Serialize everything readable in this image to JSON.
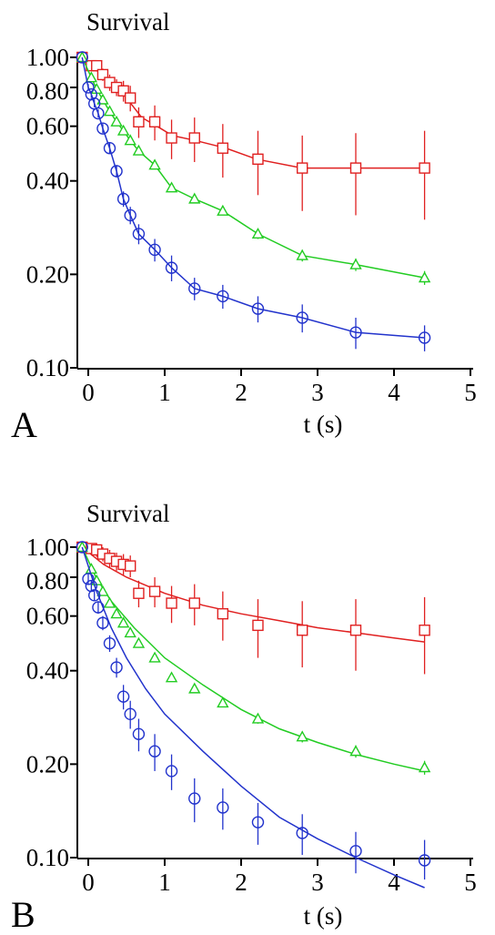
{
  "chart_data": [
    {
      "panel_label": "A",
      "type": "scatter",
      "ylabel": "Survival",
      "xlabel": "t (s)",
      "y_scale": "log",
      "xlim": [
        -0.1,
        5
      ],
      "ylim": [
        0.1,
        1.0
      ],
      "x_ticks": [
        "0",
        "1",
        "2",
        "3",
        "4",
        "5"
      ],
      "y_ticks": [
        "1.00",
        "0.80",
        "0.60",
        "0.40",
        "0.20",
        "0.10"
      ],
      "x_tick_values": [
        0,
        1,
        2,
        3,
        4,
        5
      ],
      "y_tick_values": [
        1.0,
        0.8,
        0.6,
        0.4,
        0.2,
        0.1
      ],
      "series": [
        {
          "marker": "square",
          "color": "#e02020",
          "x": [
            -0.08,
            0.04,
            0.11,
            0.19,
            0.28,
            0.37,
            0.46,
            0.55,
            0.66,
            0.87,
            1.09,
            1.39,
            1.76,
            2.22,
            2.8,
            3.5,
            4.4
          ],
          "y": [
            1.0,
            0.94,
            0.94,
            0.88,
            0.83,
            0.8,
            0.78,
            0.74,
            0.62,
            0.62,
            0.55,
            0.55,
            0.51,
            0.47,
            0.44,
            0.44,
            0.44
          ],
          "err": [
            0,
            0.03,
            0.04,
            0.04,
            0.05,
            0.05,
            0.06,
            0.07,
            0.07,
            0.08,
            0.08,
            0.09,
            0.1,
            0.11,
            0.12,
            0.13,
            0.14
          ],
          "fit_x": [
            -0.08,
            0.05,
            0.15,
            0.3,
            0.5,
            0.7,
            0.9,
            1.1,
            1.4,
            1.8,
            2.2,
            2.8,
            3.5,
            4.4
          ],
          "fit_y": [
            1.0,
            0.95,
            0.9,
            0.83,
            0.74,
            0.64,
            0.6,
            0.56,
            0.54,
            0.51,
            0.47,
            0.44,
            0.44,
            0.44
          ]
        },
        {
          "marker": "triangle",
          "color": "#22cc22",
          "x": [
            -0.08,
            0.04,
            0.11,
            0.19,
            0.28,
            0.37,
            0.46,
            0.55,
            0.66,
            0.87,
            1.09,
            1.39,
            1.76,
            2.22,
            2.8,
            3.5,
            4.4
          ],
          "y": [
            1.0,
            0.86,
            0.79,
            0.73,
            0.67,
            0.62,
            0.58,
            0.54,
            0.5,
            0.45,
            0.38,
            0.35,
            0.32,
            0.27,
            0.23,
            0.215,
            0.195
          ],
          "err": [
            0,
            0.01,
            0.01,
            0.01,
            0.01,
            0.01,
            0.01,
            0.01,
            0.01,
            0.01,
            0.01,
            0.01,
            0.01,
            0.01,
            0.01,
            0.01,
            0.01
          ],
          "fit_x": [
            -0.08,
            0.04,
            0.11,
            0.19,
            0.28,
            0.37,
            0.46,
            0.55,
            0.66,
            0.87,
            1.09,
            1.39,
            1.76,
            2.22,
            2.8,
            3.5,
            4.4
          ],
          "fit_y": [
            1.0,
            0.86,
            0.79,
            0.73,
            0.67,
            0.62,
            0.58,
            0.54,
            0.5,
            0.45,
            0.38,
            0.35,
            0.32,
            0.27,
            0.23,
            0.215,
            0.195
          ]
        },
        {
          "marker": "circle",
          "color": "#2233cc",
          "x": [
            -0.08,
            0.0,
            0.04,
            0.08,
            0.13,
            0.19,
            0.28,
            0.37,
            0.46,
            0.55,
            0.66,
            0.87,
            1.09,
            1.39,
            1.76,
            2.22,
            2.8,
            3.5,
            4.4
          ],
          "y": [
            1.0,
            0.8,
            0.76,
            0.71,
            0.66,
            0.59,
            0.51,
            0.43,
            0.35,
            0.31,
            0.27,
            0.24,
            0.21,
            0.18,
            0.17,
            0.155,
            0.145,
            0.13,
            0.125
          ],
          "err": [
            0,
            0.02,
            0.02,
            0.02,
            0.02,
            0.02,
            0.02,
            0.02,
            0.02,
            0.02,
            0.02,
            0.02,
            0.02,
            0.015,
            0.015,
            0.015,
            0.015,
            0.015,
            0.012
          ],
          "fit_x": [
            -0.08,
            0.0,
            0.04,
            0.08,
            0.13,
            0.19,
            0.28,
            0.37,
            0.46,
            0.55,
            0.66,
            0.87,
            1.09,
            1.39,
            1.76,
            2.22,
            2.8,
            3.5,
            4.4
          ],
          "fit_y": [
            1.0,
            0.8,
            0.76,
            0.71,
            0.66,
            0.59,
            0.51,
            0.43,
            0.35,
            0.31,
            0.27,
            0.24,
            0.21,
            0.18,
            0.17,
            0.155,
            0.145,
            0.13,
            0.125
          ]
        }
      ]
    },
    {
      "panel_label": "B",
      "type": "scatter",
      "ylabel": "Survival",
      "xlabel": "t (s)",
      "y_scale": "log",
      "xlim": [
        -0.1,
        5
      ],
      "ylim": [
        0.1,
        1.0
      ],
      "x_ticks": [
        "0",
        "1",
        "2",
        "3",
        "4",
        "5"
      ],
      "y_ticks": [
        "1.00",
        "0.80",
        "0.60",
        "0.40",
        "0.20",
        "0.10"
      ],
      "x_tick_values": [
        0,
        1,
        2,
        3,
        4,
        5
      ],
      "y_tick_values": [
        1.0,
        0.8,
        0.6,
        0.4,
        0.2,
        0.1
      ],
      "series": [
        {
          "marker": "square",
          "color": "#e02020",
          "x": [
            -0.08,
            0.04,
            0.11,
            0.19,
            0.28,
            0.37,
            0.46,
            0.55,
            0.66,
            0.87,
            1.09,
            1.39,
            1.76,
            2.22,
            2.8,
            3.5,
            4.4
          ],
          "y": [
            1.0,
            0.99,
            0.98,
            0.95,
            0.92,
            0.9,
            0.88,
            0.87,
            0.71,
            0.72,
            0.66,
            0.66,
            0.61,
            0.56,
            0.54,
            0.54,
            0.54
          ],
          "err": [
            0,
            0.04,
            0.05,
            0.05,
            0.06,
            0.06,
            0.07,
            0.07,
            0.07,
            0.08,
            0.09,
            0.1,
            0.11,
            0.12,
            0.13,
            0.14,
            0.15
          ],
          "fit_x": [
            -0.08,
            0.2,
            0.5,
            1.0,
            1.5,
            2.0,
            2.5,
            3.0,
            3.5,
            4.0,
            4.4
          ],
          "fit_y": [
            1.0,
            0.88,
            0.8,
            0.71,
            0.65,
            0.61,
            0.58,
            0.55,
            0.53,
            0.51,
            0.495
          ]
        },
        {
          "marker": "triangle",
          "color": "#22cc22",
          "x": [
            -0.08,
            0.04,
            0.11,
            0.19,
            0.28,
            0.37,
            0.46,
            0.55,
            0.66,
            0.87,
            1.09,
            1.39,
            1.76,
            2.22,
            2.8,
            3.5,
            4.4
          ],
          "y": [
            1.0,
            0.85,
            0.78,
            0.72,
            0.66,
            0.61,
            0.57,
            0.53,
            0.49,
            0.44,
            0.38,
            0.35,
            0.315,
            0.28,
            0.245,
            0.22,
            0.195
          ],
          "err": [
            0,
            0.01,
            0.01,
            0.01,
            0.01,
            0.01,
            0.01,
            0.01,
            0.01,
            0.01,
            0.01,
            0.01,
            0.01,
            0.01,
            0.01,
            0.01,
            0.01
          ],
          "fit_x": [
            -0.08,
            0.1,
            0.3,
            0.6,
            1.0,
            1.5,
            2.0,
            2.5,
            3.0,
            3.5,
            4.0,
            4.4
          ],
          "fit_y": [
            1.0,
            0.8,
            0.67,
            0.55,
            0.44,
            0.36,
            0.3,
            0.26,
            0.235,
            0.215,
            0.2,
            0.19
          ]
        },
        {
          "marker": "circle",
          "color": "#2233cc",
          "x": [
            -0.08,
            0.0,
            0.04,
            0.08,
            0.13,
            0.19,
            0.28,
            0.37,
            0.46,
            0.55,
            0.66,
            0.87,
            1.09,
            1.39,
            1.76,
            2.22,
            2.8,
            3.5,
            4.4
          ],
          "y": [
            1.0,
            0.79,
            0.75,
            0.7,
            0.64,
            0.57,
            0.49,
            0.41,
            0.33,
            0.29,
            0.25,
            0.22,
            0.19,
            0.155,
            0.145,
            0.13,
            0.12,
            0.105,
            0.098
          ],
          "err": [
            0,
            0.03,
            0.03,
            0.03,
            0.03,
            0.03,
            0.03,
            0.03,
            0.03,
            0.03,
            0.03,
            0.03,
            0.025,
            0.025,
            0.022,
            0.02,
            0.018,
            0.016,
            0.016
          ],
          "fit_x": [
            -0.08,
            0.1,
            0.3,
            0.5,
            0.75,
            1.0,
            1.5,
            2.0,
            2.5,
            3.0,
            3.5,
            4.0,
            4.4
          ],
          "fit_y": [
            1.0,
            0.73,
            0.55,
            0.44,
            0.35,
            0.29,
            0.22,
            0.17,
            0.135,
            0.115,
            0.1,
            0.088,
            0.08
          ]
        }
      ]
    }
  ]
}
